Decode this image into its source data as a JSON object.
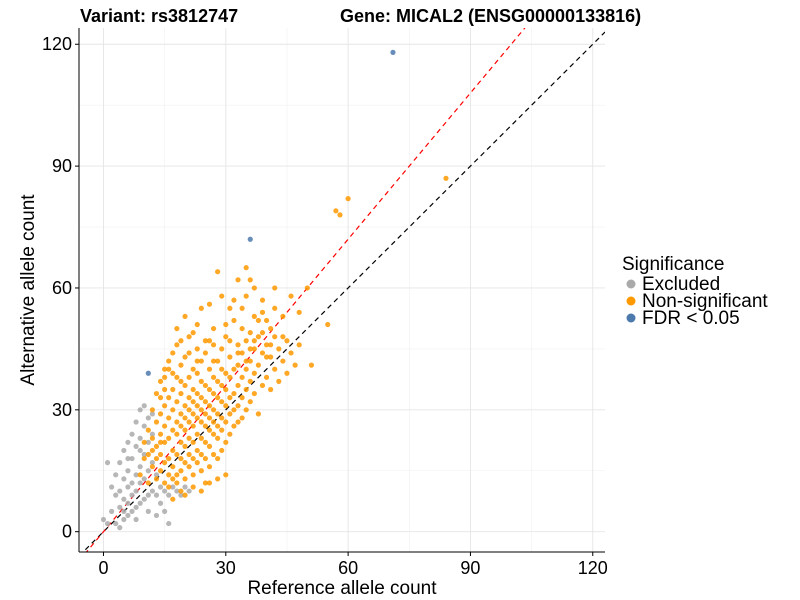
{
  "chart_data": {
    "type": "scatter",
    "title_left": "Variant: rs3812747",
    "title_right": "Gene: MICAL2 (ENSG00000133816)",
    "xlabel": "Reference allele count",
    "ylabel": "Alternative allele count",
    "xlim": [
      -6,
      123
    ],
    "ylim": [
      -5,
      124
    ],
    "xticks": [
      0,
      30,
      60,
      90,
      120
    ],
    "yticks": [
      0,
      30,
      60,
      90,
      120
    ],
    "grid": true,
    "legend": {
      "title": "Significance",
      "placement": "right",
      "entries": [
        {
          "label": "Excluded",
          "color": "#aaaaaa"
        },
        {
          "label": "Non-significant",
          "color": "#ff9900"
        },
        {
          "label": "FDR < 0.05",
          "color": "#4c7aad"
        }
      ]
    },
    "reference_lines": [
      {
        "name": "y = x",
        "slope": 1.0,
        "intercept": 0,
        "color": "#000000",
        "style": "dashed"
      },
      {
        "name": "fit",
        "slope": 1.2,
        "intercept": 0,
        "color": "#ff0000",
        "style": "dashed"
      }
    ],
    "series": [
      {
        "name": "Excluded",
        "color": "#aaaaaa",
        "points": [
          [
            0,
            3
          ],
          [
            1,
            2
          ],
          [
            1,
            17
          ],
          [
            2,
            5
          ],
          [
            2,
            11
          ],
          [
            3,
            2
          ],
          [
            3,
            9
          ],
          [
            3,
            14
          ],
          [
            4,
            1
          ],
          [
            4,
            6
          ],
          [
            4,
            10
          ],
          [
            4,
            17
          ],
          [
            5,
            3
          ],
          [
            5,
            8
          ],
          [
            5,
            13
          ],
          [
            5,
            20
          ],
          [
            6,
            4
          ],
          [
            6,
            7
          ],
          [
            6,
            11
          ],
          [
            6,
            15
          ],
          [
            6,
            22
          ],
          [
            7,
            5
          ],
          [
            7,
            9
          ],
          [
            7,
            12
          ],
          [
            7,
            18
          ],
          [
            7,
            24
          ],
          [
            8,
            6
          ],
          [
            8,
            10
          ],
          [
            8,
            14
          ],
          [
            8,
            21
          ],
          [
            8,
            27
          ],
          [
            9,
            7
          ],
          [
            9,
            12
          ],
          [
            9,
            16
          ],
          [
            9,
            23
          ],
          [
            9,
            30
          ],
          [
            10,
            8
          ],
          [
            10,
            13
          ],
          [
            10,
            19
          ],
          [
            10,
            26
          ],
          [
            10,
            31
          ],
          [
            11,
            9
          ],
          [
            11,
            15
          ],
          [
            11,
            22
          ],
          [
            11,
            28
          ],
          [
            12,
            10
          ],
          [
            12,
            17
          ],
          [
            12,
            24
          ],
          [
            13,
            9
          ],
          [
            13,
            14
          ],
          [
            14,
            7
          ],
          [
            14,
            11
          ],
          [
            15,
            10
          ],
          [
            16,
            9
          ],
          [
            17,
            11
          ],
          [
            18,
            10
          ],
          [
            19,
            9
          ],
          [
            20,
            11
          ],
          [
            21,
            10
          ],
          [
            15,
            5
          ],
          [
            16,
            2
          ],
          [
            13,
            4
          ],
          [
            8,
            3
          ],
          [
            11,
            5
          ],
          [
            5,
            5
          ],
          [
            6,
            18
          ],
          [
            9,
            20
          ],
          [
            12,
            29
          ]
        ]
      },
      {
        "name": "Non-significant",
        "color": "#ff9900",
        "points": [
          [
            9,
            14
          ],
          [
            10,
            18
          ],
          [
            11,
            12
          ],
          [
            11,
            25
          ],
          [
            12,
            16
          ],
          [
            12,
            30
          ],
          [
            13,
            13
          ],
          [
            13,
            21
          ],
          [
            13,
            27
          ],
          [
            13,
            34
          ],
          [
            14,
            15
          ],
          [
            14,
            19
          ],
          [
            14,
            24
          ],
          [
            14,
            29
          ],
          [
            14,
            37
          ],
          [
            15,
            12
          ],
          [
            15,
            17
          ],
          [
            15,
            22
          ],
          [
            15,
            26
          ],
          [
            15,
            31
          ],
          [
            15,
            40
          ],
          [
            16,
            14
          ],
          [
            16,
            18
          ],
          [
            16,
            23
          ],
          [
            16,
            28
          ],
          [
            16,
            33
          ],
          [
            16,
            42
          ],
          [
            17,
            13
          ],
          [
            17,
            16
          ],
          [
            17,
            20
          ],
          [
            17,
            25
          ],
          [
            17,
            30
          ],
          [
            17,
            35
          ],
          [
            17,
            44
          ],
          [
            18,
            14
          ],
          [
            18,
            19
          ],
          [
            18,
            24
          ],
          [
            18,
            27
          ],
          [
            18,
            32
          ],
          [
            18,
            38
          ],
          [
            18,
            46
          ],
          [
            19,
            15
          ],
          [
            19,
            18
          ],
          [
            19,
            22
          ],
          [
            19,
            26
          ],
          [
            19,
            29
          ],
          [
            19,
            34
          ],
          [
            19,
            41
          ],
          [
            20,
            13
          ],
          [
            20,
            17
          ],
          [
            20,
            21
          ],
          [
            20,
            25
          ],
          [
            20,
            28
          ],
          [
            20,
            31
          ],
          [
            20,
            36
          ],
          [
            20,
            43
          ],
          [
            21,
            16
          ],
          [
            21,
            19
          ],
          [
            21,
            23
          ],
          [
            21,
            27
          ],
          [
            21,
            30
          ],
          [
            21,
            33
          ],
          [
            21,
            38
          ],
          [
            21,
            48
          ],
          [
            22,
            14
          ],
          [
            22,
            18
          ],
          [
            22,
            22
          ],
          [
            22,
            26
          ],
          [
            22,
            29
          ],
          [
            22,
            32
          ],
          [
            22,
            35
          ],
          [
            22,
            40
          ],
          [
            23,
            17
          ],
          [
            23,
            20
          ],
          [
            23,
            24
          ],
          [
            23,
            28
          ],
          [
            23,
            31
          ],
          [
            23,
            34
          ],
          [
            23,
            39
          ],
          [
            23,
            45
          ],
          [
            24,
            15
          ],
          [
            24,
            19
          ],
          [
            24,
            23
          ],
          [
            24,
            27
          ],
          [
            24,
            30
          ],
          [
            24,
            33
          ],
          [
            24,
            37
          ],
          [
            24,
            42
          ],
          [
            25,
            12
          ],
          [
            25,
            18
          ],
          [
            25,
            22
          ],
          [
            25,
            26
          ],
          [
            25,
            29
          ],
          [
            25,
            32
          ],
          [
            25,
            36
          ],
          [
            25,
            44
          ],
          [
            26,
            16
          ],
          [
            26,
            21
          ],
          [
            26,
            25
          ],
          [
            26,
            28
          ],
          [
            26,
            31
          ],
          [
            26,
            35
          ],
          [
            26,
            40
          ],
          [
            26,
            47
          ],
          [
            27,
            19
          ],
          [
            27,
            24
          ],
          [
            27,
            27
          ],
          [
            27,
            30
          ],
          [
            27,
            34
          ],
          [
            27,
            38
          ],
          [
            27,
            50
          ],
          [
            28,
            18
          ],
          [
            28,
            23
          ],
          [
            28,
            26
          ],
          [
            28,
            29
          ],
          [
            28,
            33
          ],
          [
            28,
            37
          ],
          [
            28,
            42
          ],
          [
            29,
            20
          ],
          [
            29,
            25
          ],
          [
            29,
            28
          ],
          [
            29,
            32
          ],
          [
            29,
            36
          ],
          [
            29,
            45
          ],
          [
            30,
            22
          ],
          [
            30,
            27
          ],
          [
            30,
            31
          ],
          [
            30,
            35
          ],
          [
            30,
            39
          ],
          [
            30,
            48
          ],
          [
            31,
            24
          ],
          [
            31,
            29
          ],
          [
            31,
            33
          ],
          [
            31,
            38
          ],
          [
            31,
            43
          ],
          [
            32,
            26
          ],
          [
            32,
            30
          ],
          [
            32,
            34
          ],
          [
            32,
            40
          ],
          [
            32,
            52
          ],
          [
            33,
            27
          ],
          [
            33,
            31
          ],
          [
            33,
            36
          ],
          [
            33,
            41
          ],
          [
            33,
            46
          ],
          [
            34,
            28
          ],
          [
            34,
            33
          ],
          [
            34,
            38
          ],
          [
            34,
            44
          ],
          [
            34,
            55
          ],
          [
            35,
            30
          ],
          [
            35,
            35
          ],
          [
            35,
            40
          ],
          [
            35,
            47
          ],
          [
            35,
            58
          ],
          [
            36,
            32
          ],
          [
            36,
            37
          ],
          [
            36,
            42
          ],
          [
            36,
            49
          ],
          [
            36,
            62
          ],
          [
            37,
            34
          ],
          [
            37,
            39
          ],
          [
            37,
            45
          ],
          [
            37,
            53
          ],
          [
            38,
            29
          ],
          [
            38,
            41
          ],
          [
            38,
            48
          ],
          [
            39,
            36
          ],
          [
            39,
            44
          ],
          [
            39,
            57
          ],
          [
            40,
            38
          ],
          [
            40,
            46
          ],
          [
            40,
            52
          ],
          [
            41,
            35
          ],
          [
            41,
            43
          ],
          [
            41,
            50
          ],
          [
            42,
            40
          ],
          [
            42,
            48
          ],
          [
            42,
            60
          ],
          [
            43,
            37
          ],
          [
            43,
            45
          ],
          [
            44,
            42
          ],
          [
            44,
            53
          ],
          [
            45,
            39
          ],
          [
            45,
            47
          ],
          [
            46,
            44
          ],
          [
            46,
            58
          ],
          [
            47,
            41
          ],
          [
            48,
            46
          ],
          [
            48,
            54
          ],
          [
            50,
            60
          ],
          [
            51,
            41
          ],
          [
            55,
            51
          ],
          [
            57,
            79
          ],
          [
            58,
            78
          ],
          [
            60,
            82
          ],
          [
            84,
            87
          ],
          [
            15,
            38
          ],
          [
            16,
            40
          ],
          [
            18,
            50
          ],
          [
            19,
            47
          ],
          [
            20,
            53
          ],
          [
            22,
            49
          ],
          [
            24,
            55
          ],
          [
            26,
            56
          ],
          [
            28,
            64
          ],
          [
            30,
            51
          ],
          [
            32,
            57
          ],
          [
            33,
            62
          ],
          [
            35,
            65
          ],
          [
            37,
            60
          ],
          [
            39,
            54
          ],
          [
            21,
            44
          ],
          [
            23,
            51
          ],
          [
            27,
            46
          ],
          [
            29,
            58
          ],
          [
            31,
            55
          ],
          [
            34,
            50
          ],
          [
            36,
            45
          ],
          [
            38,
            52
          ],
          [
            40,
            43
          ],
          [
            42,
            55
          ],
          [
            44,
            48
          ],
          [
            13,
            18
          ],
          [
            12,
            20
          ],
          [
            14,
            22
          ],
          [
            16,
            11
          ],
          [
            18,
            12
          ],
          [
            20,
            9
          ],
          [
            22,
            11
          ],
          [
            24,
            10
          ],
          [
            26,
            12
          ],
          [
            28,
            13
          ],
          [
            30,
            14
          ],
          [
            17,
            8
          ],
          [
            19,
            10
          ],
          [
            11,
            19
          ],
          [
            12,
            23
          ],
          [
            10,
            22
          ],
          [
            14,
            33
          ],
          [
            15,
            35
          ],
          [
            17,
            39
          ],
          [
            19,
            37
          ],
          [
            23,
            42
          ],
          [
            25,
            47
          ],
          [
            27,
            42
          ],
          [
            29,
            40
          ],
          [
            31,
            47
          ],
          [
            33,
            44
          ],
          [
            35,
            42
          ],
          [
            37,
            47
          ],
          [
            39,
            49
          ],
          [
            41,
            46
          ]
        ]
      },
      {
        "name": "FDR < 0.05",
        "color": "#4c7aad",
        "points": [
          [
            11,
            39
          ],
          [
            36,
            72
          ],
          [
            71,
            118
          ]
        ]
      }
    ]
  }
}
